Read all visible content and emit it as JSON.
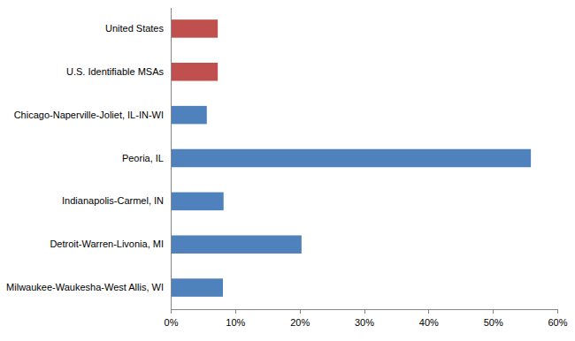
{
  "chart_data": {
    "type": "bar",
    "orientation": "horizontal",
    "categories": [
      "United States",
      "U.S. Identifiable MSAs",
      "Chicago-Naperville-Joliet, IL-IN-WI",
      "Peoria, IL",
      "Indianapolis-Carmel, IN",
      "Detroit-Warren-Livonia, MI",
      "Milwaukee-Waukesha-West Allis, WI"
    ],
    "values": [
      7.3,
      7.3,
      5.6,
      55.9,
      8.2,
      20.3,
      8.1
    ],
    "colors": [
      "#c0504d",
      "#c0504d",
      "#4f81bd",
      "#4f81bd",
      "#4f81bd",
      "#4f81bd",
      "#4f81bd"
    ],
    "xlim": [
      0,
      60
    ],
    "xticks": [
      {
        "value": 0,
        "label": "0%"
      },
      {
        "value": 10,
        "label": "10%"
      },
      {
        "value": 20,
        "label": "20%"
      },
      {
        "value": 30,
        "label": "30%"
      },
      {
        "value": 40,
        "label": "40%"
      },
      {
        "value": 50,
        "label": "50%"
      },
      {
        "value": 60,
        "label": "60%"
      }
    ],
    "grid": false
  }
}
